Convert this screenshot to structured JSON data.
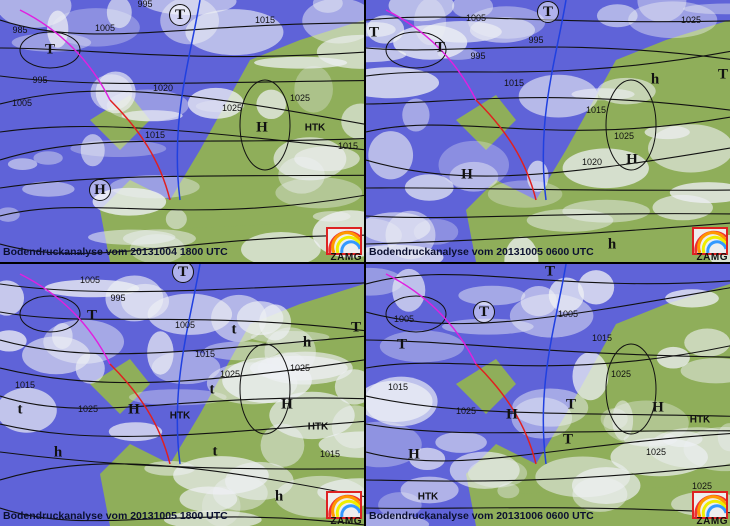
{
  "panels": [
    {
      "caption": "Bodendruckanalyse vom 20131004 1800 UTC",
      "logo": "ZAMG",
      "systems": [
        "T",
        "T",
        "H",
        "HTK",
        "H"
      ],
      "isobars": [
        "985",
        "995",
        "1005",
        "1005",
        "995",
        "1015",
        "1020",
        "1025",
        "1015",
        "1025",
        "1015"
      ]
    },
    {
      "caption": "Bodendruckanalyse vom 20131005 0600 UTC",
      "logo": "ZAMG",
      "systems": [
        "T",
        "T",
        "h",
        "H",
        "H",
        "T",
        "h",
        "T"
      ],
      "isobars": [
        "1005",
        "995",
        "995",
        "1015",
        "1025",
        "1020",
        "1025",
        "1015"
      ]
    },
    {
      "caption": "Bodendruckanalyse vom 20131005 1800 UTC",
      "logo": "ZAMG",
      "systems": [
        "T",
        "T",
        "t",
        "H",
        "HTK",
        "H",
        "HTK",
        "h",
        "T",
        "t",
        "h",
        "t",
        "h",
        "t"
      ],
      "isobars": [
        "1005",
        "995",
        "1015",
        "1005",
        "1015",
        "1025",
        "1025",
        "1025",
        "1015"
      ]
    },
    {
      "caption": "Bodendruckanalyse vom 20131006 0600 UTC",
      "logo": "ZAMG",
      "systems": [
        "T",
        "T",
        "T",
        "H",
        "T",
        "H",
        "HTK",
        "T",
        "H",
        "HTK"
      ],
      "isobars": [
        "1005",
        "1005",
        "1015",
        "1015",
        "1025",
        "1025",
        "1025",
        "1025"
      ]
    }
  ],
  "colors": {
    "sea": "#5f63d8",
    "land": "#8fae5a",
    "cloud": "#eef0f4",
    "warm_front": "#e02020",
    "cold_front": "#2040e0",
    "occlusion": "#e020e0",
    "logo_border": "#d22222"
  }
}
